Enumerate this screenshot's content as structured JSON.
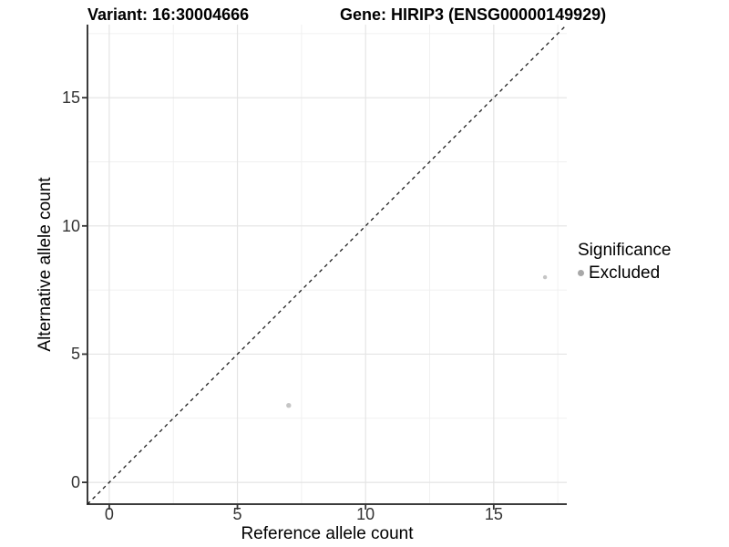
{
  "chart_data": {
    "type": "scatter",
    "title_left": "Variant: 16:30004666",
    "title_right": "Gene: HIRIP3 (ENSG00000149929)",
    "xlabel": "Reference allele count",
    "ylabel": "Alternative allele count",
    "xlim": [
      -0.85,
      17.85
    ],
    "ylim": [
      -0.85,
      17.85
    ],
    "x_major_ticks": [
      0,
      5,
      10,
      15
    ],
    "y_major_ticks": [
      0,
      5,
      10,
      15
    ],
    "x_minor_gridlines": [
      2.5,
      7.5,
      12.5,
      17.5
    ],
    "y_minor_gridlines": [
      2.5,
      7.5,
      12.5,
      17.5
    ],
    "grid": "major+minor",
    "reference_line": {
      "type": "identity y=x",
      "linetype": "dashed",
      "from": [
        -0.85,
        -0.85
      ],
      "to": [
        17.85,
        17.85
      ]
    },
    "series": [
      {
        "name": "Excluded",
        "color": "#c5c5c5",
        "points": [
          {
            "x": 7,
            "y": 3,
            "r": 2.7
          },
          {
            "x": 17,
            "y": 8,
            "r": 2.2
          }
        ]
      }
    ],
    "legend": {
      "title": "Significance",
      "position": "right",
      "entries": [
        {
          "label": "Excluded",
          "color": "#a8a8a8"
        }
      ]
    }
  },
  "colors": {
    "background": "#ffffff",
    "grid_major": "#e4e4e4",
    "grid_minor": "#f0f0f0",
    "axis_line": "#3c3c3c",
    "tick_mark": "#333333",
    "tick_label": "#333333",
    "reference_line": "#1a1a1a",
    "point": "#c5c5c5",
    "legend_key": "#a8a8a8"
  }
}
